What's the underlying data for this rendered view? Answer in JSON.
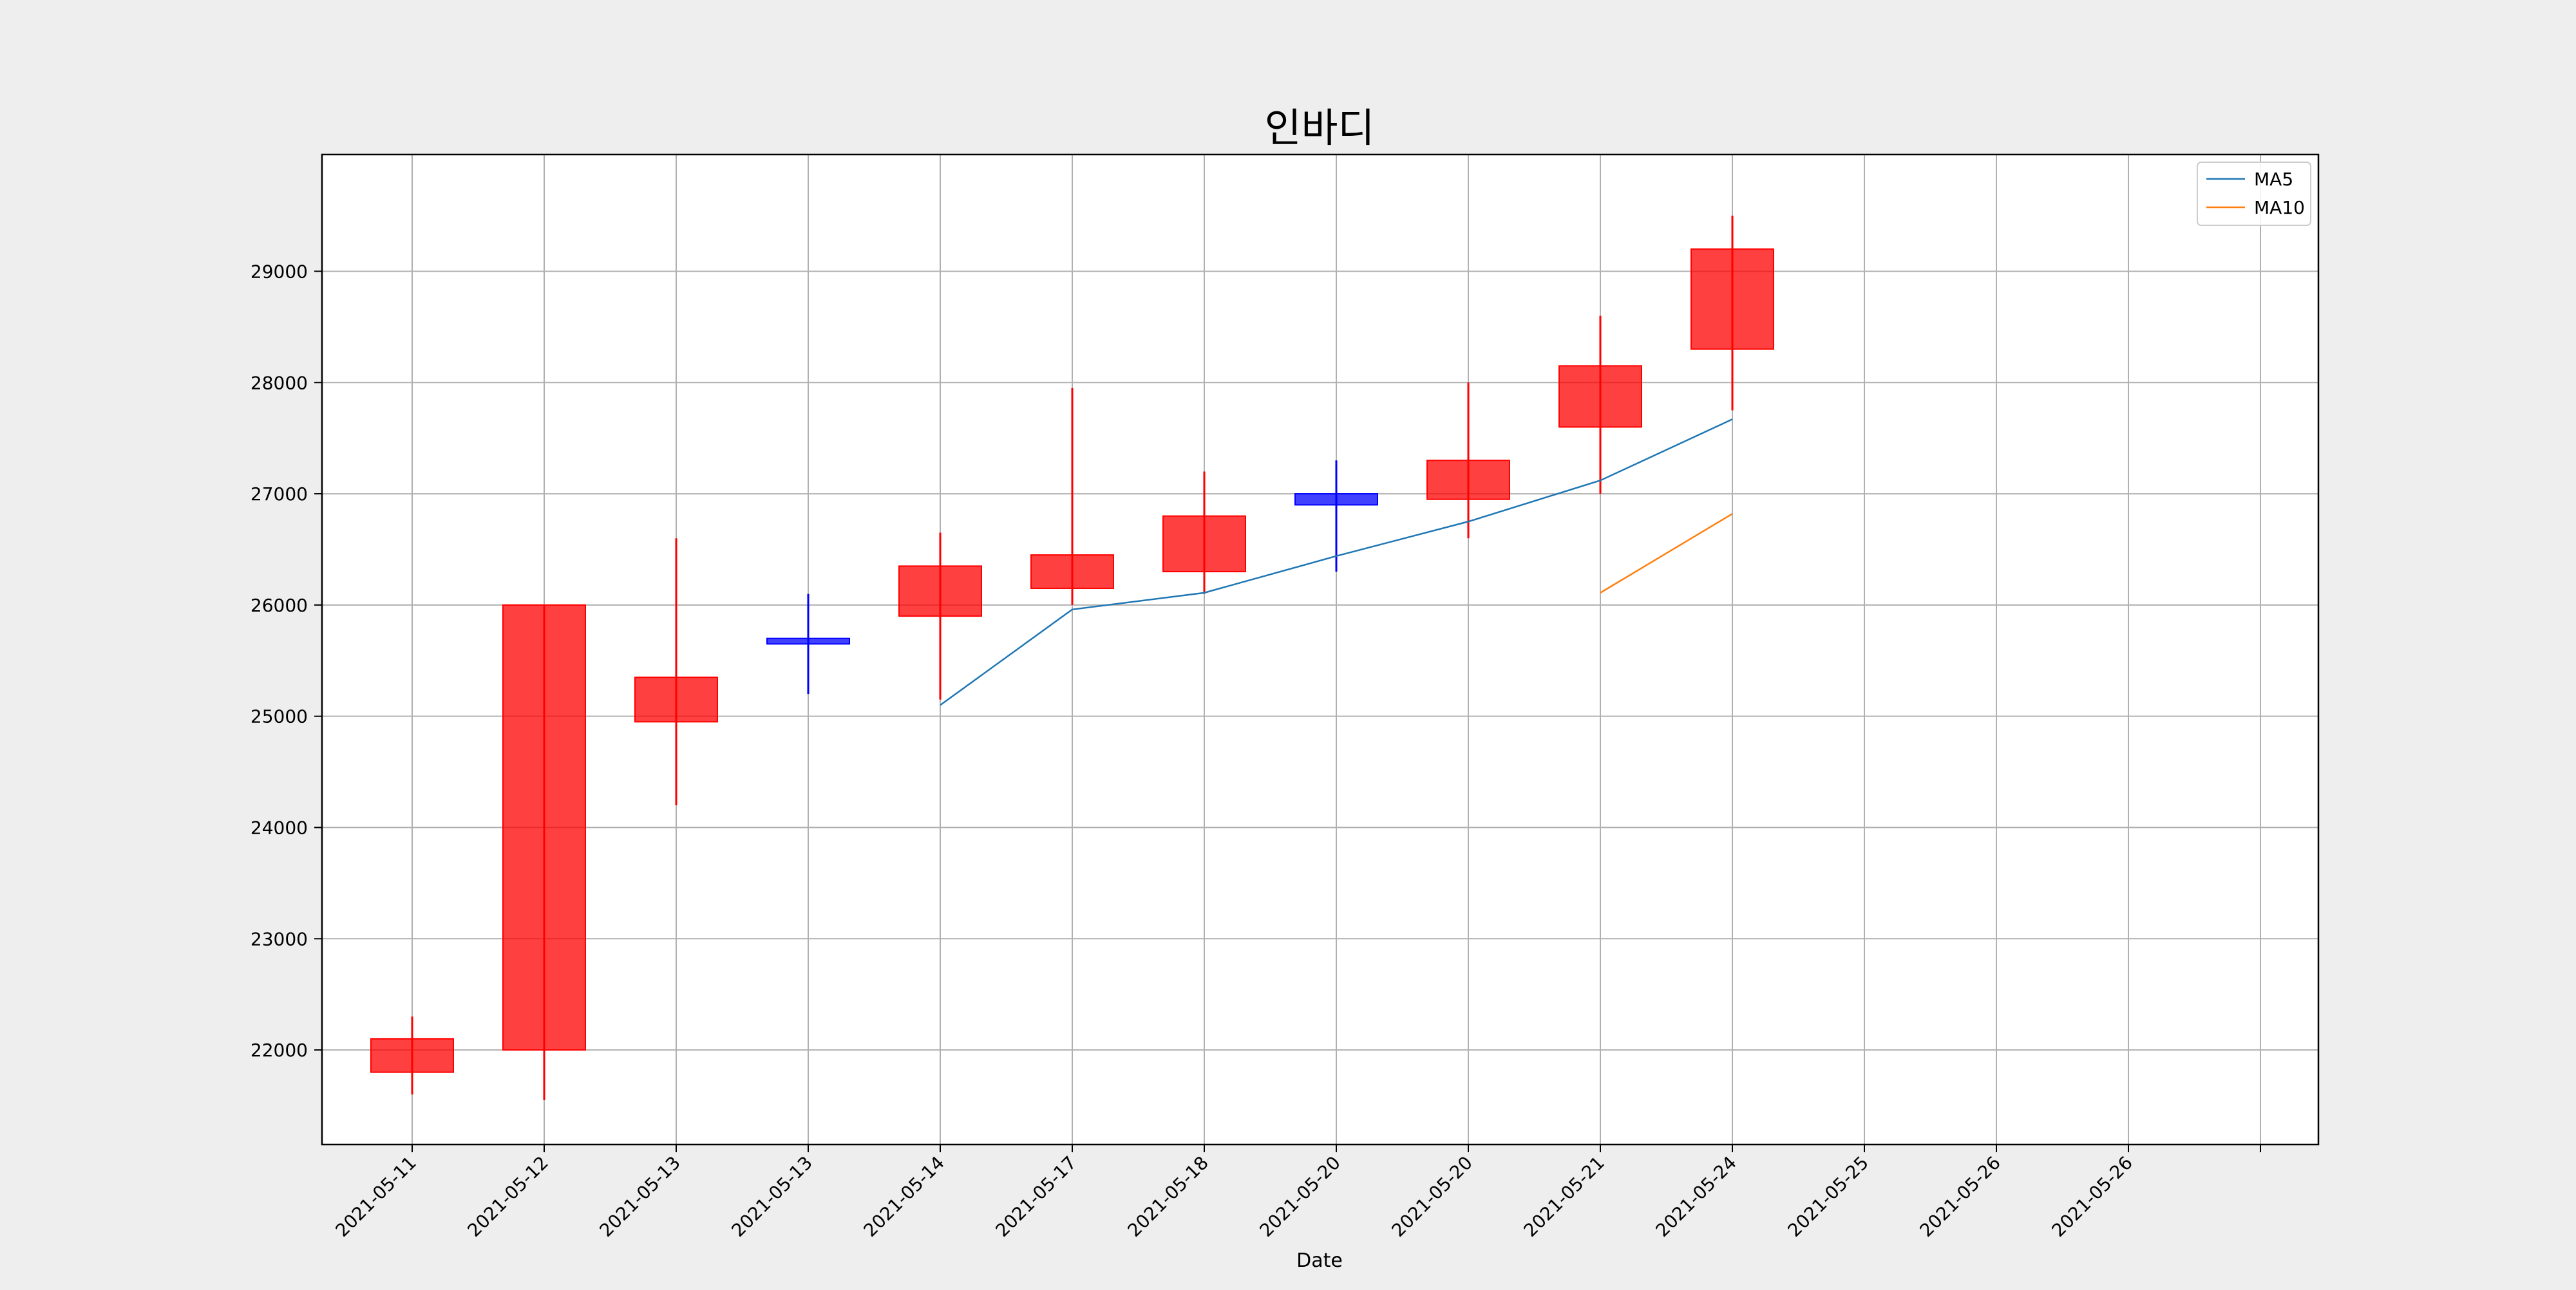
{
  "colors": {
    "figure_background": "#eeeeee",
    "plot_background": "#ffffff",
    "up_candle": "#ff0000",
    "down_candle": "#0000ff",
    "grid": "#b0b0b0",
    "ma5": "#1f77b4",
    "ma10": "#ff7f0e"
  },
  "chart_data": {
    "type": "candlestick",
    "title": "인바디",
    "xlabel": "Date",
    "ylabel": "",
    "ylim": [
      21150,
      30050
    ],
    "yticks": [
      22000,
      23000,
      24000,
      25000,
      26000,
      27000,
      28000,
      29000
    ],
    "xticks": [
      "2021-05-11",
      "2021-05-12",
      "2021-05-13",
      "2021-05-13",
      "2021-05-14",
      "2021-05-17",
      "2021-05-18",
      "2021-05-20",
      "2021-05-20",
      "2021-05-21",
      "2021-05-24",
      "2021-05-25",
      "2021-05-26",
      "2021-05-26",
      ""
    ],
    "grid": true,
    "legend_position": "top-right",
    "candles": [
      {
        "open": 21800,
        "close": 22100,
        "high": 22300,
        "low": 21600
      },
      {
        "open": 22000,
        "close": 26000,
        "high": 26000,
        "low": 21550
      },
      {
        "open": 24950,
        "close": 25350,
        "high": 26600,
        "low": 24200
      },
      {
        "open": 25700,
        "close": 25650,
        "high": 26100,
        "low": 25200
      },
      {
        "open": 25900,
        "close": 26350,
        "high": 26650,
        "low": 25150
      },
      {
        "open": 26150,
        "close": 26450,
        "high": 27950,
        "low": 26000
      },
      {
        "open": 26300,
        "close": 26800,
        "high": 27200,
        "low": 26100
      },
      {
        "open": 27000,
        "close": 26900,
        "high": 27300,
        "low": 26300
      },
      {
        "open": 26950,
        "close": 27300,
        "high": 28000,
        "low": 26600
      },
      {
        "open": 27600,
        "close": 28150,
        "high": 28600,
        "low": 27000
      },
      {
        "open": 28300,
        "close": 29200,
        "high": 29500,
        "low": 27750
      }
    ],
    "series": [
      {
        "name": "MA5",
        "values": [
          null,
          null,
          null,
          null,
          25100,
          25960,
          26110,
          26440,
          26750,
          27120,
          27670
        ]
      },
      {
        "name": "MA10",
        "values": [
          null,
          null,
          null,
          null,
          null,
          null,
          null,
          null,
          null,
          26110,
          26820
        ]
      }
    ]
  }
}
